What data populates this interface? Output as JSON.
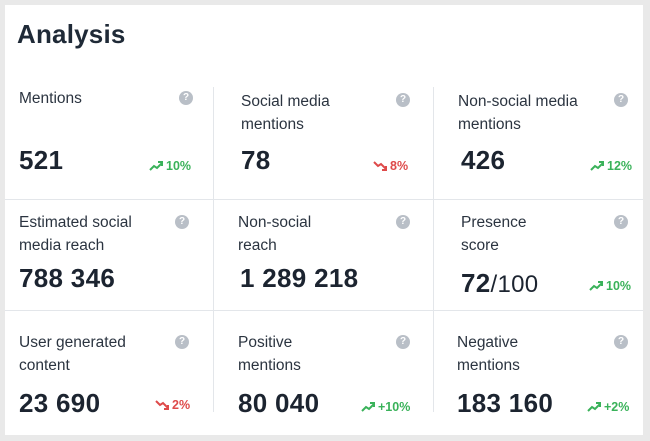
{
  "title": "Analysis",
  "colors": {
    "up": "#3ab25a",
    "down": "#de4a4a",
    "help": "#b9bfc7"
  },
  "help_icon_glyph": "?",
  "metrics": [
    {
      "label": "Mentions",
      "value": "521",
      "trend": "10%",
      "direction": "up"
    },
    {
      "label": "Social media mentions",
      "value": "78",
      "trend": "8%",
      "direction": "down"
    },
    {
      "label": "Non-social media mentions",
      "value": "426",
      "trend": "12%",
      "direction": "up"
    },
    {
      "label": "Estimated social media reach",
      "value": "788 346",
      "trend": "",
      "direction": ""
    },
    {
      "label": "Non-social reach",
      "value": "1 289 218",
      "trend": "",
      "direction": ""
    },
    {
      "label": "Presence score",
      "value": "72",
      "value_suffix": "/100",
      "trend": "10%",
      "direction": "up"
    },
    {
      "label": "User generated content",
      "value": "23 690",
      "trend": "2%",
      "direction": "down"
    },
    {
      "label": "Positive mentions",
      "value": "80 040",
      "trend": "+10%",
      "direction": "up"
    },
    {
      "label": "Negative mentions",
      "value": "183 160",
      "trend": "+2%",
      "direction": "up"
    }
  ]
}
